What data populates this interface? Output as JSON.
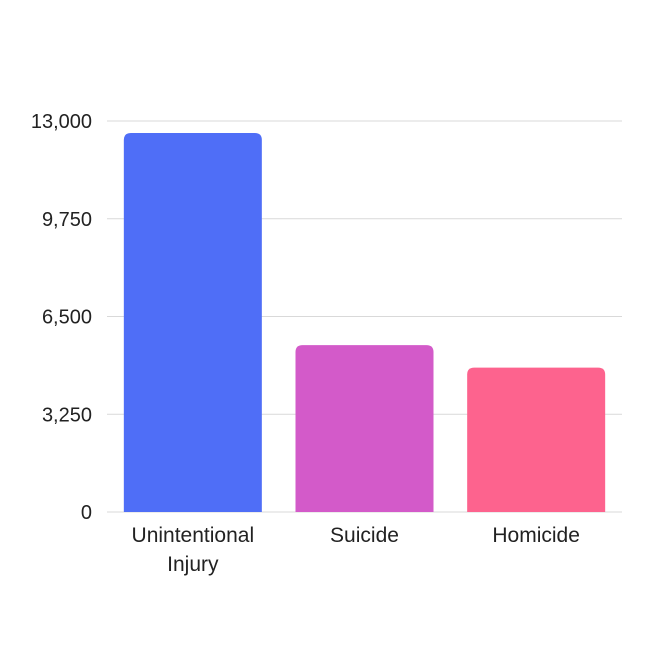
{
  "chart_data": {
    "type": "bar",
    "categories": [
      "Unintentional Injury",
      "Suicide",
      "Homicide"
    ],
    "category_label_lines": [
      [
        "Unintentional",
        "Injury"
      ],
      [
        "Suicide"
      ],
      [
        "Homicide"
      ]
    ],
    "values": [
      12600,
      5550,
      4800
    ],
    "colors": [
      "#4f6ef7",
      "#d35ac9",
      "#fd638e"
    ],
    "yticks": [
      0,
      3250,
      6500,
      9750,
      13000
    ],
    "ytick_labels": [
      "0",
      "3,250",
      "6,500",
      "9,750",
      "13,000"
    ],
    "ylim": [
      0,
      13000
    ],
    "grid": true,
    "title": "",
    "xlabel": "",
    "ylabel": ""
  }
}
